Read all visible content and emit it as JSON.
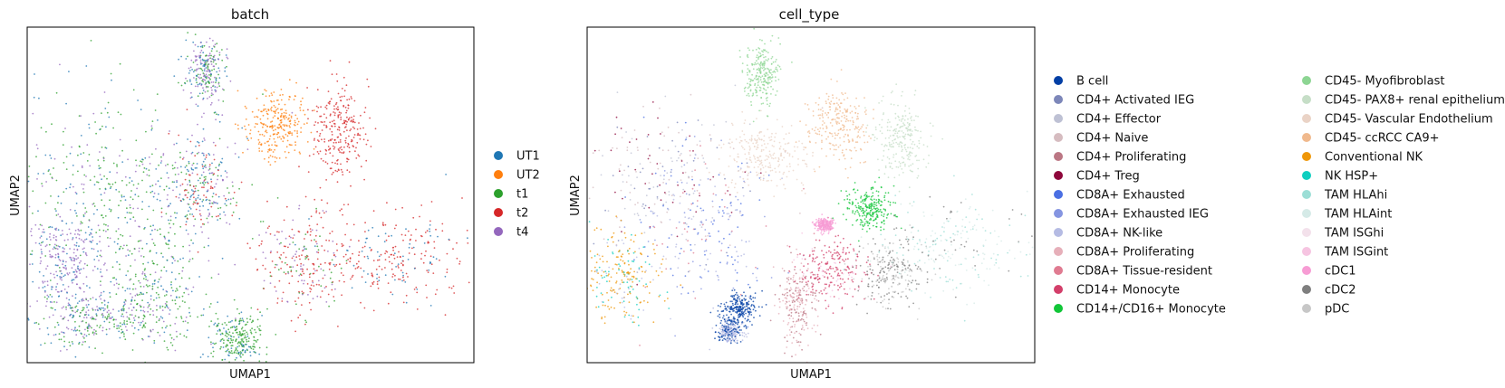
{
  "chart_data": [
    {
      "type": "scatter",
      "title": "batch",
      "xlabel": "UMAP1",
      "ylabel": "UMAP2",
      "ticks": "none",
      "grid": false,
      "legend_placement": "right",
      "legend": [
        {
          "label": "UT1",
          "color": "#1f77b4"
        },
        {
          "label": "UT2",
          "color": "#ff7f0e"
        },
        {
          "label": "t1",
          "color": "#2ca02c"
        },
        {
          "label": "t2",
          "color": "#d62728"
        },
        {
          "label": "t4",
          "color": "#9467bd"
        }
      ],
      "clusters": [
        {
          "x": 18,
          "y": 54,
          "sx": 11,
          "sy": 17,
          "mix": {
            "UT1": 0.3,
            "t1": 0.35,
            "t4": 0.35
          }
        },
        {
          "x": 20,
          "y": 50,
          "sx": 12,
          "sy": 14,
          "mix": {
            "t1": 0.6,
            "UT1": 0.25,
            "t4": 0.15
          }
        },
        {
          "x": 8,
          "y": 72,
          "sx": 5,
          "sy": 8,
          "mix": {
            "t4": 0.7,
            "UT1": 0.3
          }
        },
        {
          "x": 29,
          "y": 80,
          "sx": 5,
          "sy": 10,
          "mix": {
            "t1": 0.6,
            "UT1": 0.2,
            "t4": 0.2
          }
        },
        {
          "x": 39,
          "y": 47,
          "sx": 4,
          "sy": 8,
          "mix": {
            "UT1": 0.35,
            "t4": 0.25,
            "t2": 0.2,
            "t1": 0.2
          }
        },
        {
          "x": 40,
          "y": 13,
          "sx": 2,
          "sy": 5,
          "mix": {
            "t4": 0.4,
            "UT1": 0.3,
            "t1": 0.3
          }
        },
        {
          "x": 56,
          "y": 29,
          "sx": 3.5,
          "sy": 5,
          "mix": {
            "UT2": 1.0
          }
        },
        {
          "x": 70,
          "y": 31,
          "sx": 3,
          "sy": 7,
          "mix": {
            "t2": 1.0
          }
        },
        {
          "x": 83,
          "y": 68,
          "sx": 9,
          "sy": 7,
          "mix": {
            "t2": 0.75,
            "UT1": 0.25
          }
        },
        {
          "x": 61,
          "y": 70,
          "sx": 5,
          "sy": 8,
          "mix": {
            "t2": 0.6,
            "t4": 0.25,
            "t1": 0.15
          }
        },
        {
          "x": 47,
          "y": 93,
          "sx": 3,
          "sy": 4,
          "mix": {
            "t1": 0.8,
            "UT1": 0.2
          }
        },
        {
          "x": 15,
          "y": 87,
          "sx": 6,
          "sy": 4,
          "mix": {
            "t1": 0.4,
            "t4": 0.35,
            "UT1": 0.25
          }
        }
      ]
    },
    {
      "type": "scatter",
      "title": "cell_type",
      "xlabel": "UMAP1",
      "ylabel": "UMAP2",
      "ticks": "none",
      "grid": false,
      "legend_placement": "right",
      "legend": [
        {
          "label": "B cell",
          "color": "#023fa5"
        },
        {
          "label": "CD4+ Activated IEG",
          "color": "#7d87b9"
        },
        {
          "label": "CD4+ Effector",
          "color": "#bec1d4"
        },
        {
          "label": "CD4+ Naive",
          "color": "#d6bcc0"
        },
        {
          "label": "CD4+ Proliferating",
          "color": "#bb7784"
        },
        {
          "label": "CD4+ Treg",
          "color": "#8e063b"
        },
        {
          "label": "CD8A+ Exhausted",
          "color": "#4a6fe3"
        },
        {
          "label": "CD8A+ Exhausted IEG",
          "color": "#8595e1"
        },
        {
          "label": "CD8A+ NK-like",
          "color": "#b5bbe3"
        },
        {
          "label": "CD8A+ Proliferating",
          "color": "#e6afb9"
        },
        {
          "label": "CD8A+ Tissue-resident",
          "color": "#e07b91"
        },
        {
          "label": "CD14+ Monocyte",
          "color": "#d33f6a"
        },
        {
          "label": "CD14+/CD16+ Monocyte",
          "color": "#11c638"
        },
        {
          "label": "CD45- Myofibroblast",
          "color": "#8dd593"
        },
        {
          "label": "CD45- PAX8+ renal epithelium",
          "color": "#c6dec7"
        },
        {
          "label": "CD45- Vascular Endothelium",
          "color": "#ead3c6"
        },
        {
          "label": "CD45- ccRCC CA9+",
          "color": "#f0b98d"
        },
        {
          "label": "Conventional NK",
          "color": "#ef9708"
        },
        {
          "label": "NK HSP+",
          "color": "#0fcfc0"
        },
        {
          "label": "TAM HLAhi",
          "color": "#9cded6"
        },
        {
          "label": "TAM HLAint",
          "color": "#d5eae7"
        },
        {
          "label": "TAM ISGhi",
          "color": "#f3e1eb"
        },
        {
          "label": "TAM ISGint",
          "color": "#f6c4e1"
        },
        {
          "label": "cDC1",
          "color": "#f79cd4"
        },
        {
          "label": "cDC2",
          "color": "#7f7f7f"
        },
        {
          "label": "pDC",
          "color": "#c7c7c7"
        }
      ],
      "clusters": [
        {
          "x": 17,
          "y": 47,
          "sx": 10,
          "sy": 12,
          "mix": {
            "CD4+ Naive": 0.35,
            "CD4+ Effector": 0.3,
            "CD4+ Activated IEG": 0.2,
            "CD4+ Treg": 0.15
          }
        },
        {
          "x": 26,
          "y": 60,
          "sx": 8,
          "sy": 12,
          "mix": {
            "CD8A+ Exhausted": 0.35,
            "CD8A+ Exhausted IEG": 0.3,
            "CD8A+ NK-like": 0.2,
            "CD8A+ Tissue-resident": 0.15
          }
        },
        {
          "x": 8,
          "y": 74,
          "sx": 4,
          "sy": 7,
          "mix": {
            "Conventional NK": 0.6,
            "NK HSP+": 0.25,
            "CD8A+ NK-like": 0.15
          }
        },
        {
          "x": 34,
          "y": 84,
          "sx": 2,
          "sy": 2.5,
          "mix": {
            "B cell": 1.0
          }
        },
        {
          "x": 32,
          "y": 91,
          "sx": 1.5,
          "sy": 1.5,
          "mix": {
            "CD8A+ NK-like": 0.6,
            "B cell": 0.4
          }
        },
        {
          "x": 47,
          "y": 82,
          "sx": 2,
          "sy": 6,
          "mix": {
            "CD8A+ Proliferating": 0.6,
            "CD4+ Proliferating": 0.4
          }
        },
        {
          "x": 39,
          "y": 14,
          "sx": 2,
          "sy": 5,
          "mix": {
            "CD45- Myofibroblast": 1.0
          }
        },
        {
          "x": 39,
          "y": 38,
          "sx": 5,
          "sy": 5,
          "mix": {
            "CD45- Vascular Endothelium": 1.0
          }
        },
        {
          "x": 56,
          "y": 29,
          "sx": 3.5,
          "sy": 5,
          "mix": {
            "CD45- ccRCC CA9+": 1.0
          }
        },
        {
          "x": 70,
          "y": 34,
          "sx": 3,
          "sy": 6,
          "mix": {
            "CD45- PAX8+ renal epithelium": 1.0
          }
        },
        {
          "x": 63,
          "y": 54,
          "sx": 2.5,
          "sy": 3,
          "mix": {
            "CD14+/CD16+ Monocyte": 1.0
          }
        },
        {
          "x": 55,
          "y": 72,
          "sx": 4,
          "sy": 5,
          "mix": {
            "CD14+ Monocyte": 0.85,
            "TAM ISGint": 0.15
          }
        },
        {
          "x": 82,
          "y": 65,
          "sx": 9,
          "sy": 7,
          "mix": {
            "TAM HLAint": 0.5,
            "TAM HLAhi": 0.35,
            "cDC2": 0.15
          }
        },
        {
          "x": 68,
          "y": 73,
          "sx": 4,
          "sy": 5,
          "mix": {
            "cDC2": 0.6,
            "pDC": 0.4
          }
        },
        {
          "x": 53,
          "y": 59,
          "sx": 1,
          "sy": 1,
          "mix": {
            "cDC1": 1.0
          }
        }
      ]
    }
  ]
}
